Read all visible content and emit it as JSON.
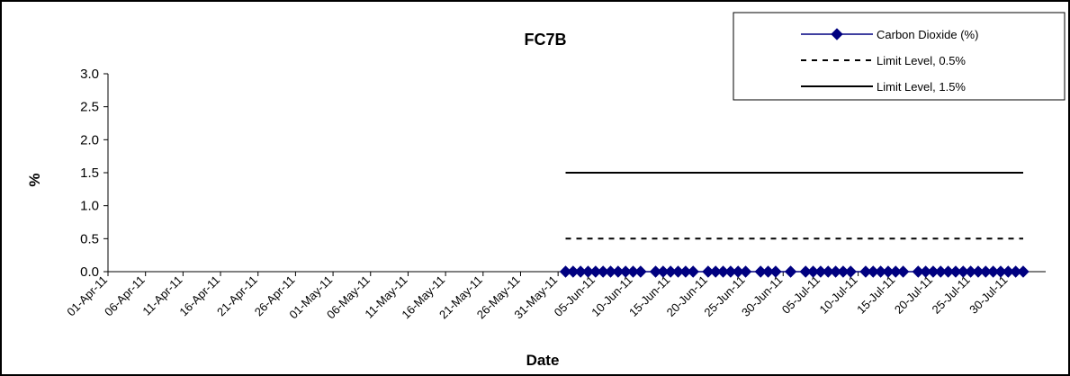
{
  "chart_data": {
    "type": "line",
    "title": "FC7B",
    "xlabel": "Date",
    "ylabel": "%",
    "ylim": [
      0,
      3.0
    ],
    "yticks": [
      "0.0",
      "0.5",
      "1.0",
      "1.5",
      "2.0",
      "2.5",
      "3.0"
    ],
    "xlim": [
      "2011-04-01",
      "2011-08-04"
    ],
    "x_tick_labels": [
      "01-Apr-11",
      "06-Apr-11",
      "11-Apr-11",
      "16-Apr-11",
      "21-Apr-11",
      "26-Apr-11",
      "01-May-11",
      "06-May-11",
      "11-May-11",
      "16-May-11",
      "21-May-11",
      "26-May-11",
      "31-May-11",
      "05-Jun-11",
      "10-Jun-11",
      "15-Jun-11",
      "20-Jun-11",
      "25-Jun-11",
      "30-Jun-11",
      "05-Jul-11",
      "10-Jul-11",
      "15-Jul-11",
      "20-Jul-11",
      "25-Jul-11",
      "30-Jul-11"
    ],
    "grid": false,
    "legend_position": "top-right",
    "series": [
      {
        "name": "Carbon Dioxide (%)",
        "color": "#000080",
        "marker": "diamond",
        "x": [
          "2011-06-01",
          "2011-06-02",
          "2011-06-03",
          "2011-06-04",
          "2011-06-05",
          "2011-06-06",
          "2011-06-07",
          "2011-06-08",
          "2011-06-09",
          "2011-06-10",
          "2011-06-11",
          "2011-06-13",
          "2011-06-14",
          "2011-06-15",
          "2011-06-16",
          "2011-06-17",
          "2011-06-18",
          "2011-06-20",
          "2011-06-21",
          "2011-06-22",
          "2011-06-23",
          "2011-06-24",
          "2011-06-25",
          "2011-06-27",
          "2011-06-28",
          "2011-06-29",
          "2011-07-01",
          "2011-07-03",
          "2011-07-04",
          "2011-07-05",
          "2011-07-06",
          "2011-07-07",
          "2011-07-08",
          "2011-07-09",
          "2011-07-11",
          "2011-07-12",
          "2011-07-13",
          "2011-07-14",
          "2011-07-15",
          "2011-07-16",
          "2011-07-18",
          "2011-07-19",
          "2011-07-20",
          "2011-07-21",
          "2011-07-22",
          "2011-07-23",
          "2011-07-24",
          "2011-07-25",
          "2011-07-26",
          "2011-07-27",
          "2011-07-28",
          "2011-07-29",
          "2011-07-30",
          "2011-07-31",
          "2011-08-01"
        ],
        "values": [
          0,
          0,
          0,
          0,
          0,
          0,
          0,
          0,
          0,
          0,
          0,
          0,
          0,
          0,
          0,
          0,
          0,
          0,
          0,
          0,
          0,
          0,
          0,
          0,
          0,
          0,
          0,
          0,
          0,
          0,
          0,
          0,
          0,
          0,
          0,
          0,
          0,
          0,
          0,
          0,
          0,
          0,
          0,
          0,
          0,
          0,
          0,
          0,
          0,
          0,
          0,
          0,
          0,
          0,
          0
        ]
      },
      {
        "name": "Limit Level, 0.5%",
        "color": "#000000",
        "style": "dashed",
        "x": [
          "2011-06-01",
          "2011-08-01"
        ],
        "values": [
          0.5,
          0.5
        ]
      },
      {
        "name": "Limit Level, 1.5%",
        "color": "#000000",
        "style": "solid",
        "x": [
          "2011-06-01",
          "2011-08-01"
        ],
        "values": [
          1.5,
          1.5
        ]
      }
    ]
  }
}
